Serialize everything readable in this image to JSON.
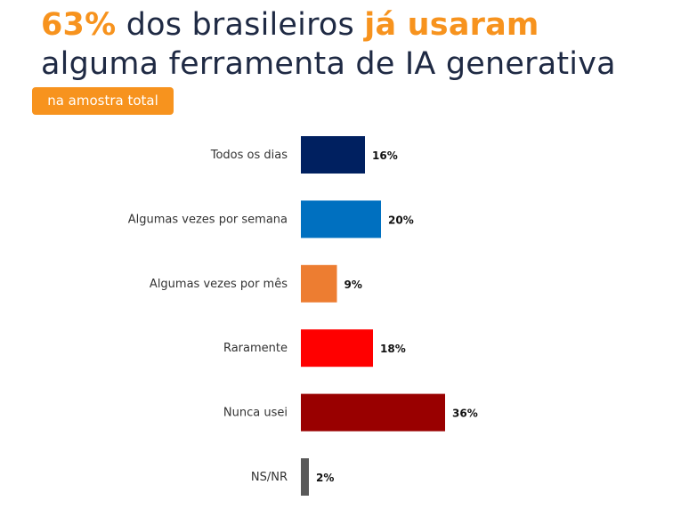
{
  "header": {
    "line1_highlight1": "63%",
    "line1_middle": " dos brasileiros ",
    "line1_highlight2": "já usaram",
    "line2": "alguma ferramenta de IA generativa",
    "badge": "na amostra total"
  },
  "chart_data": {
    "type": "bar",
    "orientation": "horizontal",
    "title": "63% dos brasileiros já usaram alguma ferramenta de IA generativa",
    "subtitle": "na amostra total",
    "categories": [
      "Todos os dias",
      "Algumas vezes por semana",
      "Algumas vezes por mês",
      "Raramente",
      "Nunca usei",
      "NS/NR"
    ],
    "values": [
      16,
      20,
      9,
      18,
      36,
      2
    ],
    "value_labels": [
      "16%",
      "20%",
      "9%",
      "18%",
      "36%",
      "2%"
    ],
    "colors": [
      "#002060",
      "#0070C0",
      "#ED7D31",
      "#FF0000",
      "#990000",
      "#595959"
    ],
    "xlim": [
      0,
      40
    ],
    "grid": false
  }
}
